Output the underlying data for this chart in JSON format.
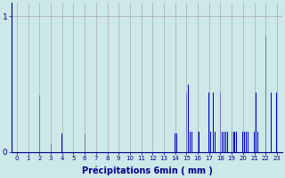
{
  "xlabel": "Précipitations 6min ( mm )",
  "background_color": "#cce8e8",
  "bar_color": "#0000cc",
  "grid_color": "#aaaaaa",
  "text_color": "#00008b",
  "yticks": [
    0,
    1
  ],
  "ylim": [
    0,
    1.1
  ],
  "xlim": [
    -0.5,
    23.5
  ],
  "categories": [
    0,
    1,
    2,
    3,
    4,
    5,
    6,
    7,
    8,
    9,
    10,
    11,
    12,
    13,
    14,
    15,
    16,
    17,
    18,
    19,
    20,
    21,
    22,
    23
  ],
  "bars": [
    [
      2.0,
      0.42
    ],
    [
      3.0,
      0.06
    ],
    [
      4.0,
      0.14
    ],
    [
      6.0,
      0.14
    ],
    [
      14.0,
      0.14
    ],
    [
      14.15,
      0.14
    ],
    [
      15.0,
      0.44
    ],
    [
      15.15,
      0.5
    ],
    [
      15.3,
      0.15
    ],
    [
      15.45,
      0.15
    ],
    [
      16.0,
      0.15
    ],
    [
      16.15,
      0.15
    ],
    [
      17.0,
      0.44
    ],
    [
      17.15,
      0.15
    ],
    [
      17.4,
      0.44
    ],
    [
      17.55,
      0.15
    ],
    [
      18.0,
      0.44
    ],
    [
      18.15,
      0.15
    ],
    [
      18.3,
      0.15
    ],
    [
      18.45,
      0.15
    ],
    [
      18.6,
      0.15
    ],
    [
      19.0,
      0.15
    ],
    [
      19.15,
      0.15
    ],
    [
      19.3,
      0.15
    ],
    [
      19.45,
      0.15
    ],
    [
      20.0,
      0.15
    ],
    [
      20.15,
      0.15
    ],
    [
      20.3,
      0.15
    ],
    [
      20.45,
      0.15
    ],
    [
      21.0,
      0.15
    ],
    [
      21.15,
      0.44
    ],
    [
      21.3,
      0.15
    ],
    [
      22.0,
      0.85
    ],
    [
      22.5,
      0.44
    ],
    [
      23.0,
      0.44
    ]
  ],
  "bar_width": 0.08
}
